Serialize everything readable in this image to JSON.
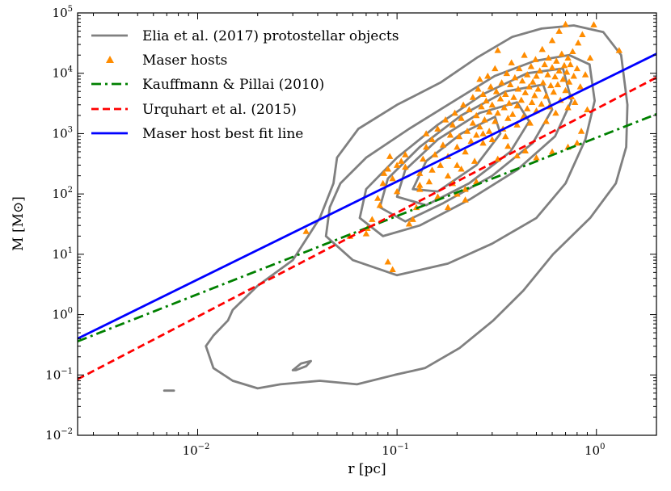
{
  "chart_data": {
    "type": "scatter",
    "xscale": "log",
    "yscale": "log",
    "xlabel": "r [pc]",
    "ylabel": "M [M⊙]",
    "xlim": [
      0.0025,
      2.0
    ],
    "ylim": [
      0.01,
      100000
    ],
    "grid": false,
    "legend_position": "top-left",
    "x_ticks": [
      {
        "value": 0.01,
        "base": "10",
        "exp": "−2"
      },
      {
        "value": 0.1,
        "base": "10",
        "exp": "−1"
      },
      {
        "value": 1,
        "base": "10",
        "exp": "0"
      }
    ],
    "y_ticks": [
      {
        "value": 0.01,
        "base": "10",
        "exp": "−2"
      },
      {
        "value": 0.1,
        "base": "10",
        "exp": "−1"
      },
      {
        "value": 1,
        "base": "10",
        "exp": "0"
      },
      {
        "value": 10,
        "base": "10",
        "exp": "1"
      },
      {
        "value": 100,
        "base": "10",
        "exp": "2"
      },
      {
        "value": 1000,
        "base": "10",
        "exp": "3"
      },
      {
        "value": 10000,
        "base": "10",
        "exp": "4"
      },
      {
        "value": 100000,
        "base": "10",
        "exp": "5"
      }
    ],
    "legend": [
      {
        "label": "Elia et al. (2017) protostellar objects",
        "kind": "line",
        "color": "#808080",
        "dash": "solid"
      },
      {
        "label": "Maser hosts",
        "kind": "marker",
        "color": "#ff8c00"
      },
      {
        "label": "Kauffmann & Pillai (2010)",
        "kind": "line",
        "color": "#008000",
        "dash": "dashdot"
      },
      {
        "label": "Urquhart et al. (2015)",
        "kind": "line",
        "color": "#ff0000",
        "dash": "dashed"
      },
      {
        "label": "Maser host best fit line",
        "kind": "line",
        "color": "#0000ff",
        "dash": "solid"
      }
    ],
    "series": [
      {
        "name": "Maser host best fit line",
        "type": "line",
        "color": "#0000ff",
        "x": [
          0.0025,
          2.0
        ],
        "y": [
          0.4,
          21000
        ]
      },
      {
        "name": "Kauffmann & Pillai (2010)",
        "type": "line",
        "color": "#008000",
        "x": [
          0.0025,
          2.0
        ],
        "y": [
          0.36,
          2100
        ]
      },
      {
        "name": "Urquhart et al. (2015)",
        "type": "line",
        "color": "#ff0000",
        "x": [
          0.0025,
          2.0
        ],
        "y": [
          0.085,
          8500
        ]
      }
    ],
    "contours": [
      {
        "name": "Elia et al. (2017) protostellar objects",
        "color": "#808080",
        "x": [
          0.0142,
          0.015,
          0.02,
          0.03,
          0.041,
          0.048,
          0.05,
          0.064,
          0.1,
          0.165,
          0.251,
          0.378,
          0.53,
          0.77,
          1.083,
          1.33,
          1.43,
          1.41,
          1.252,
          0.93,
          0.606,
          0.43,
          0.304,
          0.206,
          0.138,
          0.097,
          0.063,
          0.041,
          0.026,
          0.02,
          0.015,
          0.012,
          0.011,
          0.012,
          0.0142
        ],
        "y": [
          0.8,
          1.2,
          3.0,
          8.0,
          40.0,
          150.0,
          400.0,
          1200.0,
          3000.0,
          7000.0,
          18000.0,
          40000.0,
          55000.0,
          62000.0,
          48000.0,
          20000.0,
          3000.0,
          600.0,
          150.0,
          40.0,
          10.0,
          2.5,
          0.8,
          0.28,
          0.13,
          0.1,
          0.07,
          0.08,
          0.07,
          0.06,
          0.08,
          0.13,
          0.3,
          0.45,
          0.8
        ]
      },
      {
        "name": "Elia et al. (2017) protostellar objects",
        "color": "#808080",
        "x": [
          0.044,
          0.046,
          0.052,
          0.07,
          0.115,
          0.194,
          0.309,
          0.489,
          0.73,
          0.924,
          0.98,
          0.88,
          0.7,
          0.5,
          0.3,
          0.18,
          0.1,
          0.06,
          0.044
        ],
        "y": [
          20.0,
          60.0,
          150.0,
          400.0,
          1200.0,
          3500.0,
          9000.0,
          16000.0,
          20000.0,
          14000.0,
          3500.0,
          800.0,
          150.0,
          40.0,
          15.0,
          7.0,
          4.5,
          8.0,
          20.0
        ]
      },
      {
        "name": "Elia et al. (2017) protostellar objects",
        "color": "#808080",
        "x": [
          0.065,
          0.07,
          0.1,
          0.16,
          0.27,
          0.45,
          0.68,
          0.75,
          0.62,
          0.4,
          0.23,
          0.13,
          0.085,
          0.065
        ],
        "y": [
          40.0,
          120.0,
          400.0,
          1400.0,
          4500.0,
          10000.0,
          12000.0,
          3500.0,
          900.0,
          250.0,
          80.0,
          30.0,
          20.0,
          40.0
        ]
      },
      {
        "name": "Elia et al. (2017) protostellar objects",
        "color": "#808080",
        "x": [
          0.082,
          0.09,
          0.13,
          0.21,
          0.35,
          0.54,
          0.6,
          0.48,
          0.3,
          0.17,
          0.11,
          0.082
        ],
        "y": [
          60.0,
          180.0,
          600.0,
          2000.0,
          5000.0,
          6500.0,
          2500.0,
          700.0,
          200.0,
          70.0,
          35.0,
          60.0
        ]
      },
      {
        "name": "Elia et al. (2017) protostellar objects",
        "color": "#808080",
        "x": [
          0.1,
          0.11,
          0.16,
          0.26,
          0.4,
          0.46,
          0.37,
          0.23,
          0.14,
          0.1
        ],
        "y": [
          90.0,
          250.0,
          800.0,
          2200.0,
          3300.0,
          1600.0,
          500.0,
          150.0,
          65.0,
          90.0
        ]
      },
      {
        "name": "Elia et al. (2017) protostellar objects",
        "color": "#808080",
        "x": [
          0.12,
          0.14,
          0.21,
          0.31,
          0.33,
          0.25,
          0.16,
          0.12
        ],
        "y": [
          120.0,
          350.0,
          1000.0,
          1900.0,
          1000.0,
          300.0,
          110.0,
          120.0
        ]
      },
      {
        "name": "Elia et al. (2017) protostellar objects",
        "color": "#808080",
        "x": [
          0.03,
          0.033,
          0.037,
          0.035,
          0.031,
          0.03
        ],
        "y": [
          0.12,
          0.155,
          0.17,
          0.14,
          0.12,
          0.12
        ]
      },
      {
        "name": "Elia et al. (2017) protostellar objects",
        "color": "#808080",
        "x": [
          0.0068,
          0.0076
        ],
        "y": [
          0.055,
          0.055
        ]
      }
    ],
    "scatter": {
      "name": "Maser hosts",
      "color": "#ff8c00",
      "points": [
        [
          0.035,
          24
        ],
        [
          0.058,
          20
        ],
        [
          0.07,
          22
        ],
        [
          0.071,
          27
        ],
        [
          0.09,
          7.5
        ],
        [
          0.095,
          5.6
        ],
        [
          0.075,
          38
        ],
        [
          0.08,
          85
        ],
        [
          0.082,
          65
        ],
        [
          0.085,
          150
        ],
        [
          0.086,
          220
        ],
        [
          0.09,
          260
        ],
        [
          0.095,
          180
        ],
        [
          0.1,
          110
        ],
        [
          0.1,
          300
        ],
        [
          0.105,
          350
        ],
        [
          0.11,
          450
        ],
        [
          0.115,
          32
        ],
        [
          0.12,
          38
        ],
        [
          0.125,
          60
        ],
        [
          0.13,
          120
        ],
        [
          0.13,
          220
        ],
        [
          0.135,
          380
        ],
        [
          0.14,
          600
        ],
        [
          0.145,
          160
        ],
        [
          0.15,
          250
        ],
        [
          0.15,
          800
        ],
        [
          0.155,
          450
        ],
        [
          0.16,
          90
        ],
        [
          0.16,
          1200
        ],
        [
          0.165,
          300
        ],
        [
          0.17,
          650
        ],
        [
          0.175,
          1700
        ],
        [
          0.18,
          200
        ],
        [
          0.18,
          420
        ],
        [
          0.185,
          950
        ],
        [
          0.19,
          150
        ],
        [
          0.19,
          1400
        ],
        [
          0.195,
          2200
        ],
        [
          0.2,
          300
        ],
        [
          0.2,
          600
        ],
        [
          0.205,
          900
        ],
        [
          0.21,
          260
        ],
        [
          0.21,
          1800
        ],
        [
          0.215,
          3000
        ],
        [
          0.22,
          120
        ],
        [
          0.22,
          500
        ],
        [
          0.225,
          1100
        ],
        [
          0.23,
          2500
        ],
        [
          0.235,
          750
        ],
        [
          0.24,
          1500
        ],
        [
          0.24,
          4000
        ],
        [
          0.245,
          350
        ],
        [
          0.25,
          950
        ],
        [
          0.25,
          2000
        ],
        [
          0.255,
          5500
        ],
        [
          0.26,
          1300
        ],
        [
          0.265,
          2800
        ],
        [
          0.27,
          700
        ],
        [
          0.27,
          4500
        ],
        [
          0.275,
          1700
        ],
        [
          0.28,
          3500
        ],
        [
          0.285,
          9000
        ],
        [
          0.29,
          1100
        ],
        [
          0.29,
          2300
        ],
        [
          0.295,
          6000
        ],
        [
          0.3,
          800
        ],
        [
          0.3,
          3000
        ],
        [
          0.31,
          1600
        ],
        [
          0.31,
          12000
        ],
        [
          0.315,
          5000
        ],
        [
          0.32,
          2200
        ],
        [
          0.32,
          24000
        ],
        [
          0.33,
          3800
        ],
        [
          0.335,
          7000
        ],
        [
          0.34,
          1200
        ],
        [
          0.345,
          2700
        ],
        [
          0.35,
          900
        ],
        [
          0.35,
          4500
        ],
        [
          0.355,
          10000
        ],
        [
          0.36,
          1800
        ],
        [
          0.365,
          3200
        ],
        [
          0.37,
          6500
        ],
        [
          0.375,
          15000
        ],
        [
          0.38,
          2100
        ],
        [
          0.385,
          4000
        ],
        [
          0.39,
          8500
        ],
        [
          0.4,
          1400
        ],
        [
          0.4,
          2900
        ],
        [
          0.405,
          5500
        ],
        [
          0.41,
          12000
        ],
        [
          0.42,
          3600
        ],
        [
          0.425,
          7500
        ],
        [
          0.43,
          1900
        ],
        [
          0.435,
          20000
        ],
        [
          0.44,
          4800
        ],
        [
          0.45,
          2600
        ],
        [
          0.45,
          9500
        ],
        [
          0.46,
          6000
        ],
        [
          0.465,
          1500
        ],
        [
          0.47,
          13000
        ],
        [
          0.475,
          3300
        ],
        [
          0.48,
          7200
        ],
        [
          0.49,
          4300
        ],
        [
          0.495,
          17000
        ],
        [
          0.5,
          2400
        ],
        [
          0.5,
          9000
        ],
        [
          0.51,
          5500
        ],
        [
          0.52,
          11000
        ],
        [
          0.53,
          3100
        ],
        [
          0.535,
          25000
        ],
        [
          0.54,
          7000
        ],
        [
          0.55,
          14000
        ],
        [
          0.56,
          4200
        ],
        [
          0.56,
          1600
        ],
        [
          0.57,
          9500
        ],
        [
          0.575,
          18000
        ],
        [
          0.58,
          2800
        ],
        [
          0.59,
          6300
        ],
        [
          0.6,
          12500
        ],
        [
          0.6,
          35000
        ],
        [
          0.61,
          4900
        ],
        [
          0.62,
          8800
        ],
        [
          0.625,
          2200
        ],
        [
          0.63,
          16000
        ],
        [
          0.64,
          6500
        ],
        [
          0.65,
          11000
        ],
        [
          0.65,
          50000
        ],
        [
          0.66,
          3600
        ],
        [
          0.67,
          21000
        ],
        [
          0.68,
          8000
        ],
        [
          0.69,
          13500
        ],
        [
          0.7,
          5200
        ],
        [
          0.7,
          65000
        ],
        [
          0.71,
          10500
        ],
        [
          0.72,
          2700
        ],
        [
          0.72,
          18000
        ],
        [
          0.73,
          7200
        ],
        [
          0.74,
          14000
        ],
        [
          0.75,
          4100
        ],
        [
          0.76,
          23000
        ],
        [
          0.77,
          9000
        ],
        [
          0.78,
          3300
        ],
        [
          0.8,
          12000
        ],
        [
          0.81,
          32000
        ],
        [
          0.83,
          6000
        ],
        [
          0.85,
          44000
        ],
        [
          0.88,
          9500
        ],
        [
          0.9,
          2500
        ],
        [
          0.93,
          18000
        ],
        [
          0.97,
          64000
        ],
        [
          1.3,
          24000
        ],
        [
          0.84,
          1100
        ],
        [
          0.8,
          700
        ],
        [
          0.72,
          600
        ],
        [
          0.6,
          500
        ],
        [
          0.5,
          400
        ],
        [
          0.44,
          520
        ],
        [
          0.4,
          430
        ],
        [
          0.36,
          620
        ],
        [
          0.32,
          380
        ],
        [
          0.25,
          160
        ],
        [
          0.22,
          80
        ],
        [
          0.2,
          100
        ],
        [
          0.18,
          60
        ],
        [
          0.27,
          1000
        ],
        [
          0.13,
          140
        ],
        [
          0.14,
          1000
        ],
        [
          0.11,
          280
        ],
        [
          0.092,
          420
        ],
        [
          0.26,
          8000
        ]
      ]
    }
  }
}
